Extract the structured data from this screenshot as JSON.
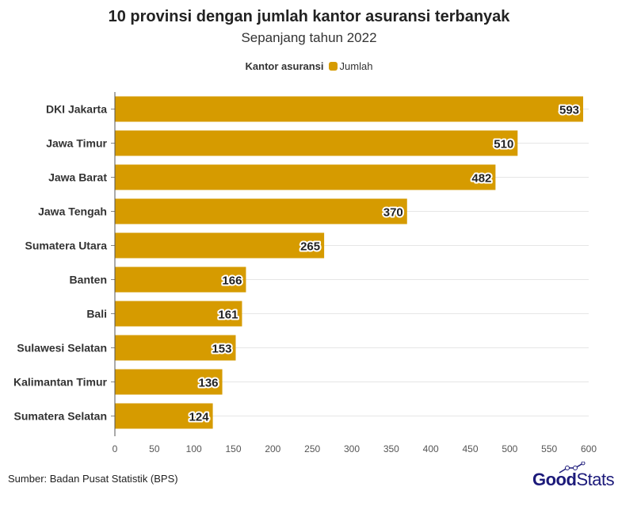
{
  "chart_data": {
    "type": "bar",
    "orientation": "horizontal",
    "title": "10 provinsi dengan jumlah kantor asuransi terbanyak",
    "subtitle": "Sepanjang tahun 2022",
    "legend_title": "Kantor asuransi",
    "legend_placement": "top",
    "categories": [
      "DKI Jakarta",
      "Jawa Timur",
      "Jawa Barat",
      "Jawa Tengah",
      "Sumatera Utara",
      "Banten",
      "Bali",
      "Sulawesi Selatan",
      "Kalimantan Timur",
      "Sumatera Selatan"
    ],
    "series": [
      {
        "name": "Jumlah",
        "values": [
          593,
          510,
          482,
          370,
          265,
          166,
          161,
          153,
          136,
          124
        ],
        "color": "#d69b00"
      }
    ],
    "xlim": [
      0,
      600
    ],
    "xticks": [
      0,
      50,
      100,
      150,
      200,
      250,
      300,
      350,
      400,
      450,
      500,
      550,
      600
    ],
    "grid": true
  },
  "source": "Sumber: Badan Pusat Statistik (BPS)",
  "logo": {
    "text_bold": "Good",
    "text_light": "Stats"
  }
}
